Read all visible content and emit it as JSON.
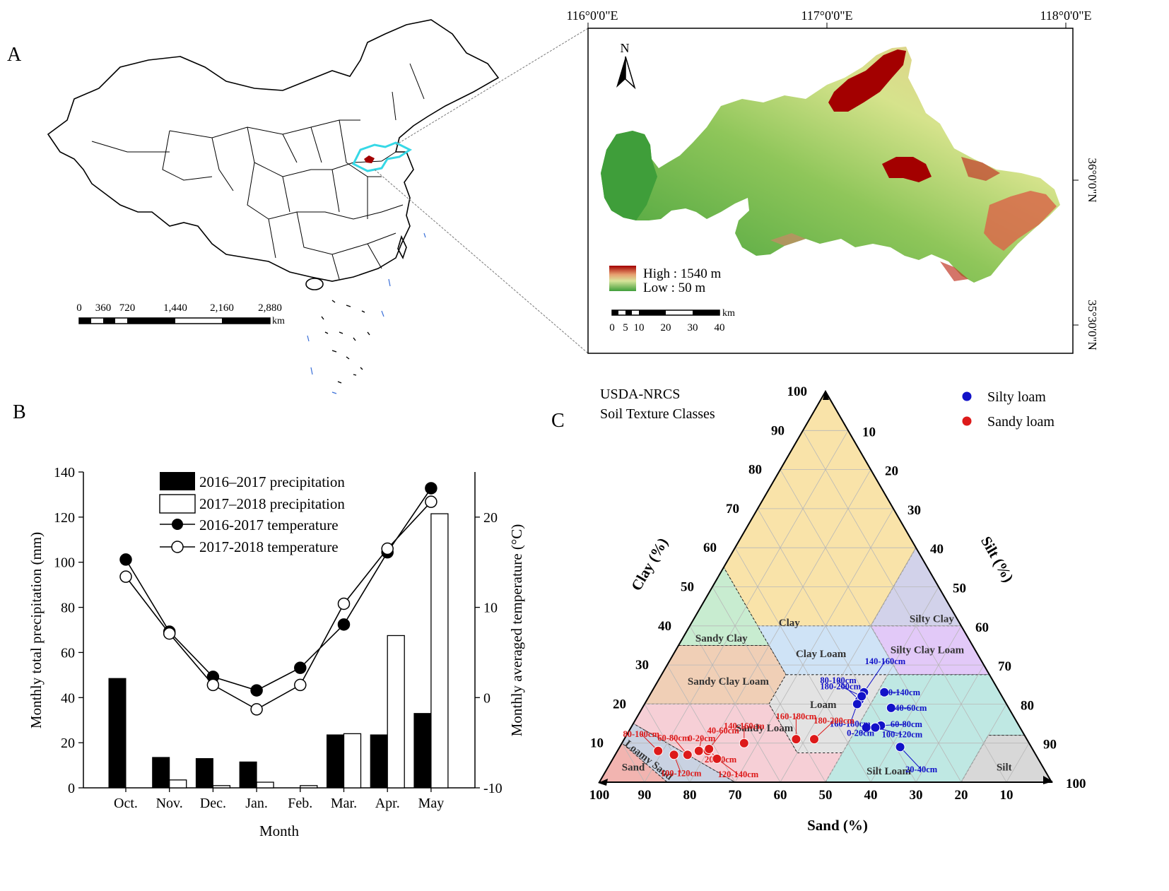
{
  "panels": {
    "a": "A",
    "b": "B",
    "c": "C"
  },
  "colors": {
    "study_area": "#36d8e6",
    "high": "#a30000",
    "low": "#3f9e3a",
    "black": "#000000"
  },
  "map_china": {
    "scale_ticks": [
      "0",
      "360",
      "720",
      "1,440",
      "2,160",
      "2,880"
    ],
    "scale_unit": "km"
  },
  "map_inset": {
    "top_ticks": [
      "116°0'0\"E",
      "117°0'0\"E",
      "118°0'0\"E"
    ],
    "right_ticks": [
      "36°0'0\"N",
      "35°30'0\"N"
    ],
    "north_label": "N",
    "legend_high": "High : 1540 m",
    "legend_low": "Low :    50 m",
    "scale_ticks": [
      "0",
      "5",
      "10",
      "20",
      "30",
      "40"
    ],
    "scale_unit": "km"
  },
  "chart_data": [
    {
      "type": "bar",
      "title": "",
      "xlabel": "Month",
      "ylabel": "Monthly total precipitation (mm)",
      "y2label": "Monthly averaged temperature (°C)",
      "ylim": [
        0,
        140
      ],
      "y2lim": [
        -10,
        25
      ],
      "yticks": [
        "0",
        "20",
        "40",
        "60",
        "80",
        "100",
        "120",
        "140"
      ],
      "y2ticks": [
        "-10",
        "0",
        "10",
        "20"
      ],
      "categories": [
        "Oct.",
        "Nov.",
        "Dec.",
        "Jan.",
        "Feb.",
        "Mar.",
        "Apr.",
        "May"
      ],
      "series": [
        {
          "name": "2016–2017 precipitation",
          "kind": "bar",
          "values": [
            48.5,
            13.5,
            13,
            11.5,
            0,
            23.5,
            23.5,
            33
          ]
        },
        {
          "name": "2017–2018 precipitation",
          "kind": "bar",
          "values": [
            0,
            3.5,
            1,
            2.5,
            1,
            24,
            67.5,
            121.5
          ]
        },
        {
          "name": "2016-2017 temperature",
          "kind": "line",
          "axis": "right",
          "values": [
            15.3,
            7.3,
            2.3,
            0.8,
            3.3,
            8.1,
            16.1,
            23.2
          ]
        },
        {
          "name": "2017-2018 temperature",
          "kind": "line",
          "axis": "right",
          "values": [
            13.4,
            7.1,
            1.4,
            -1.3,
            1.4,
            10.4,
            16.5,
            21.7
          ]
        }
      ]
    },
    {
      "type": "scatter",
      "title": "USDA-NRCS",
      "subtitle": "Soil Texture Classes",
      "axes": {
        "left": "Clay (%)",
        "right": "Silt (%)",
        "bottom": "Sand (%)"
      },
      "ticks": [
        "10",
        "20",
        "30",
        "40",
        "50",
        "60",
        "70",
        "80",
        "90",
        "100"
      ],
      "classes": [
        {
          "name": "Clay",
          "color": "#f9e3a9"
        },
        {
          "name": "Sandy Clay",
          "color": "#c8ecd0"
        },
        {
          "name": "Silty Clay",
          "color": "#d2d2ea"
        },
        {
          "name": "Clay Loam",
          "color": "#cfe3f6"
        },
        {
          "name": "Silty Clay Loam",
          "color": "#e2c9f8"
        },
        {
          "name": "Sandy Clay Loam",
          "color": "#f0cfb6"
        },
        {
          "name": "Loam",
          "color": "#e3e3e3"
        },
        {
          "name": "Sandy Loam",
          "color": "#f6cfd6"
        },
        {
          "name": "Silt Loam",
          "color": "#bfe8e3"
        },
        {
          "name": "Silt",
          "color": "#d8d8d8"
        },
        {
          "name": "Loamy Sand",
          "color": "#c9d2e2"
        },
        {
          "name": "Sand",
          "color": "#f2b4b0"
        }
      ],
      "legend": [
        {
          "name": "Silty loam",
          "color": "#1212c8"
        },
        {
          "name": "Sandy loam",
          "color": "#dd1a1a"
        }
      ],
      "series": [
        {
          "name": "Silty loam",
          "points": [
            {
              "label": "0-20cm",
              "sand": 34,
              "clay": 14
            },
            {
              "label": "20-40cm",
              "sand": 29,
              "clay": 9
            },
            {
              "label": "40-60cm",
              "sand": 26,
              "clay": 19
            },
            {
              "label": "60-80cm",
              "sand": 30.5,
              "clay": 14.5
            },
            {
              "label": "80-100cm",
              "sand": 32,
              "clay": 21
            },
            {
              "label": "100-120cm",
              "sand": 32,
              "clay": 14
            },
            {
              "label": "120-140cm",
              "sand": 25.5,
              "clay": 23
            },
            {
              "label": "140-160cm",
              "sand": 30,
              "clay": 23
            },
            {
              "label": "160-180cm",
              "sand": 33,
              "clay": 20
            },
            {
              "label": "180-200cm",
              "sand": 31,
              "clay": 22
            }
          ]
        },
        {
          "name": "Sandy loam",
          "points": [
            {
              "label": "0-20cm",
              "sand": 74,
              "clay": 8
            },
            {
              "label": "20-40cm",
              "sand": 72,
              "clay": 8
            },
            {
              "label": "40-60cm",
              "sand": 71.5,
              "clay": 8.5
            },
            {
              "label": "60-80cm",
              "sand": 77,
              "clay": 7
            },
            {
              "label": "80-100cm",
              "sand": 83,
              "clay": 8
            },
            {
              "label": "100-120cm",
              "sand": 80,
              "clay": 7
            },
            {
              "label": "120-140cm",
              "sand": 71,
              "clay": 6
            },
            {
              "label": "140-160cm",
              "sand": 63,
              "clay": 10
            },
            {
              "label": "160-180cm",
              "sand": 51,
              "clay": 11
            },
            {
              "label": "180-200cm",
              "sand": 47,
              "clay": 11
            }
          ]
        }
      ]
    }
  ]
}
